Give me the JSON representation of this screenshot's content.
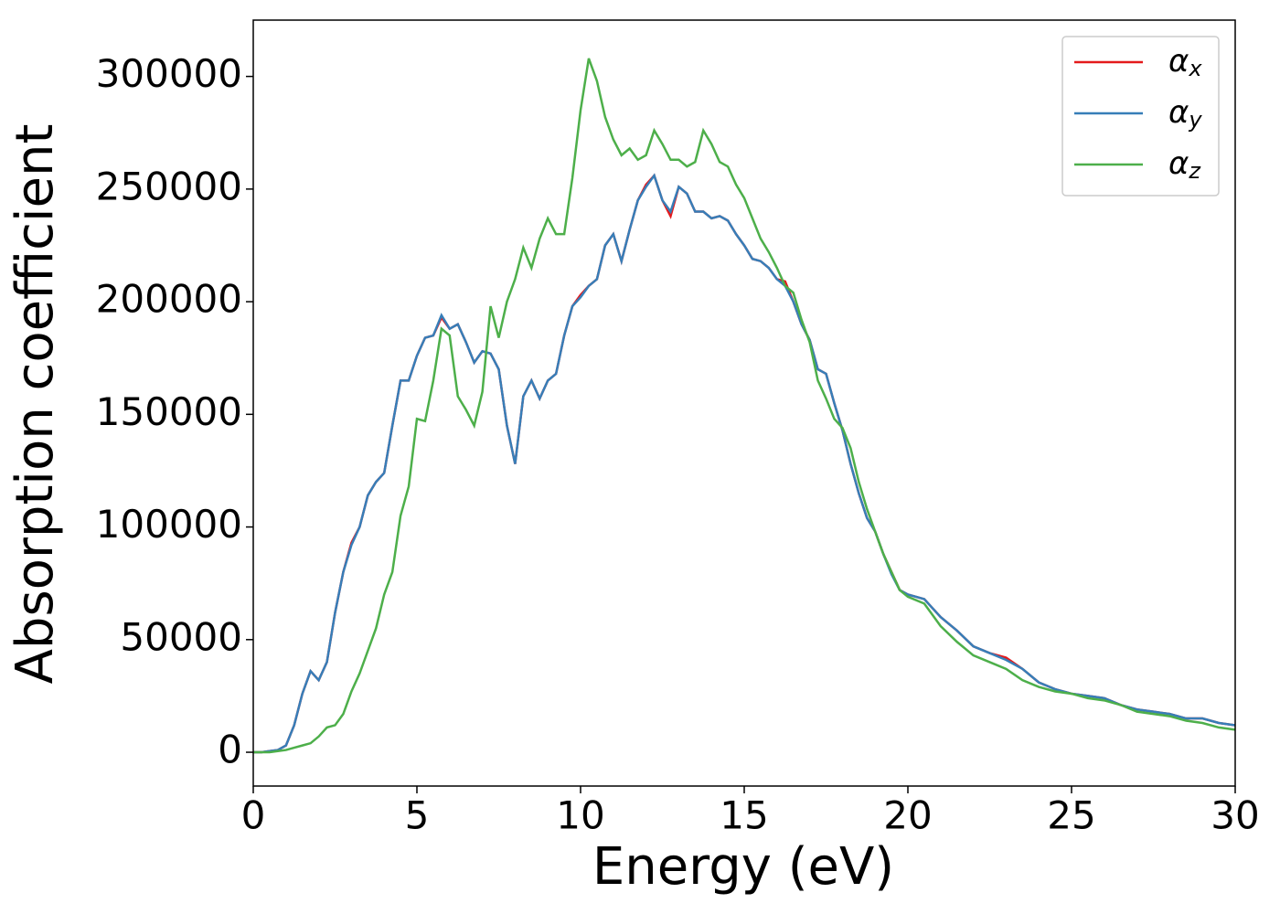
{
  "chart_data": {
    "type": "line",
    "xlabel": "Energy (eV)",
    "ylabel": "Absorption coefficient",
    "xlim": [
      0,
      30
    ],
    "ylim": [
      -15000,
      325000
    ],
    "xticks": [
      0,
      5,
      10,
      15,
      20,
      25,
      30
    ],
    "yticks": [
      0,
      50000,
      100000,
      150000,
      200000,
      250000,
      300000
    ],
    "legend": "upper right",
    "x": [
      0,
      0.25,
      0.5,
      0.75,
      1,
      1.25,
      1.5,
      1.75,
      2,
      2.25,
      2.5,
      2.75,
      3,
      3.25,
      3.5,
      3.75,
      4,
      4.25,
      4.5,
      4.75,
      5,
      5.25,
      5.5,
      5.75,
      6,
      6.25,
      6.5,
      6.75,
      7,
      7.25,
      7.5,
      7.75,
      8,
      8.25,
      8.5,
      8.75,
      9,
      9.25,
      9.5,
      9.75,
      10,
      10.25,
      10.5,
      10.75,
      11,
      11.25,
      11.5,
      11.75,
      12,
      12.25,
      12.5,
      12.75,
      13,
      13.25,
      13.5,
      13.75,
      14,
      14.25,
      14.5,
      14.75,
      15,
      15.25,
      15.5,
      15.75,
      16,
      16.25,
      16.5,
      16.75,
      17,
      17.25,
      17.5,
      17.75,
      18,
      18.25,
      18.5,
      18.75,
      19,
      19.25,
      19.5,
      19.75,
      20,
      20.5,
      21,
      21.5,
      22,
      22.5,
      23,
      23.5,
      24,
      24.5,
      25,
      25.5,
      26,
      26.5,
      27,
      27.5,
      28,
      28.5,
      29,
      29.5,
      30
    ],
    "series": [
      {
        "name": "αx",
        "color": "#e41a1c",
        "values": [
          0,
          0,
          500,
          1000,
          3000,
          12000,
          26000,
          36000,
          32000,
          40000,
          62000,
          80000,
          93000,
          100000,
          114000,
          120000,
          124000,
          145000,
          165000,
          165000,
          176000,
          184000,
          185000,
          193000,
          188000,
          190000,
          182000,
          173000,
          178000,
          177000,
          170000,
          145000,
          128000,
          158000,
          165000,
          157000,
          165000,
          168000,
          185000,
          198000,
          203000,
          207000,
          210000,
          225000,
          230000,
          218000,
          232000,
          245000,
          252000,
          256000,
          245000,
          238000,
          251000,
          248000,
          240000,
          240000,
          237000,
          238000,
          236000,
          230000,
          225000,
          219000,
          218000,
          215000,
          210000,
          209000,
          200000,
          190000,
          183000,
          170000,
          168000,
          155000,
          143000,
          128000,
          115000,
          104000,
          98000,
          88000,
          80000,
          72000,
          70000,
          68000,
          60000,
          54000,
          47000,
          44000,
          42000,
          37000,
          31000,
          28000,
          26000,
          25000,
          24000,
          21000,
          19000,
          18000,
          17000,
          15000,
          15000,
          13000,
          12000
        ]
      },
      {
        "name": "αy",
        "color": "#377eb8",
        "values": [
          0,
          0,
          500,
          1000,
          3000,
          12000,
          26000,
          36000,
          32000,
          40000,
          62000,
          80000,
          92000,
          100000,
          114000,
          120000,
          124000,
          145000,
          165000,
          165000,
          176000,
          184000,
          185000,
          194000,
          188000,
          190000,
          182000,
          173000,
          178000,
          177000,
          170000,
          145000,
          128000,
          158000,
          165000,
          157000,
          165000,
          168000,
          185000,
          198000,
          202000,
          207000,
          210000,
          225000,
          230000,
          218000,
          232000,
          245000,
          251000,
          256000,
          245000,
          240000,
          251000,
          248000,
          240000,
          240000,
          237000,
          238000,
          236000,
          230000,
          225000,
          219000,
          218000,
          215000,
          210000,
          207000,
          200000,
          190000,
          183000,
          170000,
          168000,
          155000,
          143000,
          128000,
          115000,
          104000,
          98000,
          88000,
          79000,
          72000,
          70000,
          68000,
          60000,
          54000,
          47000,
          44000,
          41000,
          37000,
          31000,
          28000,
          26000,
          25000,
          24000,
          21000,
          19000,
          18000,
          17000,
          15000,
          15000,
          13000,
          12000
        ]
      },
      {
        "name": "αz",
        "color": "#4daf4a",
        "values": [
          0,
          0,
          0,
          500,
          1000,
          2000,
          3000,
          4000,
          7000,
          11000,
          12000,
          17000,
          27000,
          35000,
          45000,
          55000,
          70000,
          80000,
          105000,
          118000,
          148000,
          147000,
          165000,
          188000,
          185000,
          158000,
          152000,
          145000,
          160000,
          198000,
          184000,
          200000,
          210000,
          224000,
          215000,
          228000,
          237000,
          230000,
          230000,
          255000,
          285000,
          308000,
          298000,
          282000,
          272000,
          265000,
          268000,
          263000,
          265000,
          276000,
          270000,
          263000,
          263000,
          260000,
          262000,
          276000,
          270000,
          262000,
          260000,
          252000,
          246000,
          237000,
          228000,
          222000,
          215000,
          207000,
          204000,
          192000,
          182000,
          165000,
          157000,
          148000,
          144000,
          135000,
          120000,
          108000,
          98000,
          88000,
          80000,
          72000,
          69000,
          66000,
          56000,
          49000,
          43000,
          40000,
          37000,
          32000,
          29000,
          27000,
          26000,
          24000,
          23000,
          21000,
          18000,
          17000,
          16000,
          14000,
          13000,
          11000,
          10000
        ]
      }
    ]
  }
}
